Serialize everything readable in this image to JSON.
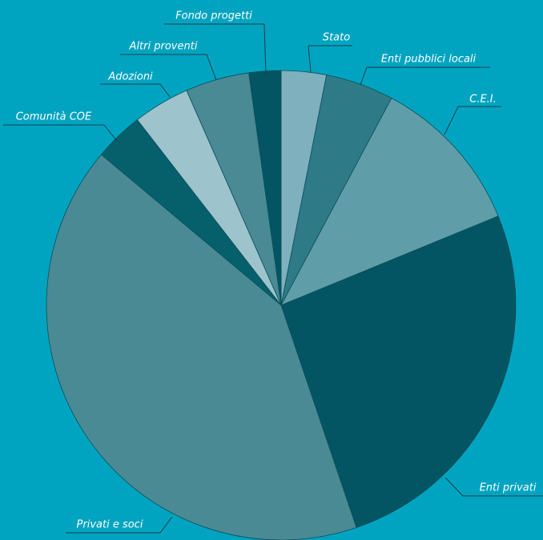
{
  "chart_data": {
    "type": "pie",
    "categories": [
      "Stato",
      "Enti pubblici locali",
      "C.E.I.",
      "Enti privati",
      "Privati e soci",
      "Comunità COE",
      "Adozioni",
      "Altri proventi",
      "Fondo progetti"
    ],
    "values": [
      3.1,
      4.7,
      11,
      26,
      41.3,
      3.4,
      3.9,
      4.4,
      2.2
    ],
    "colors": [
      "#7fb0bd",
      "#2e7b87",
      "#5f9ea8",
      "#045563",
      "#4a8a95",
      "#05606c",
      "#9dc3cc",
      "#4a8a95",
      "#045563"
    ]
  }
}
